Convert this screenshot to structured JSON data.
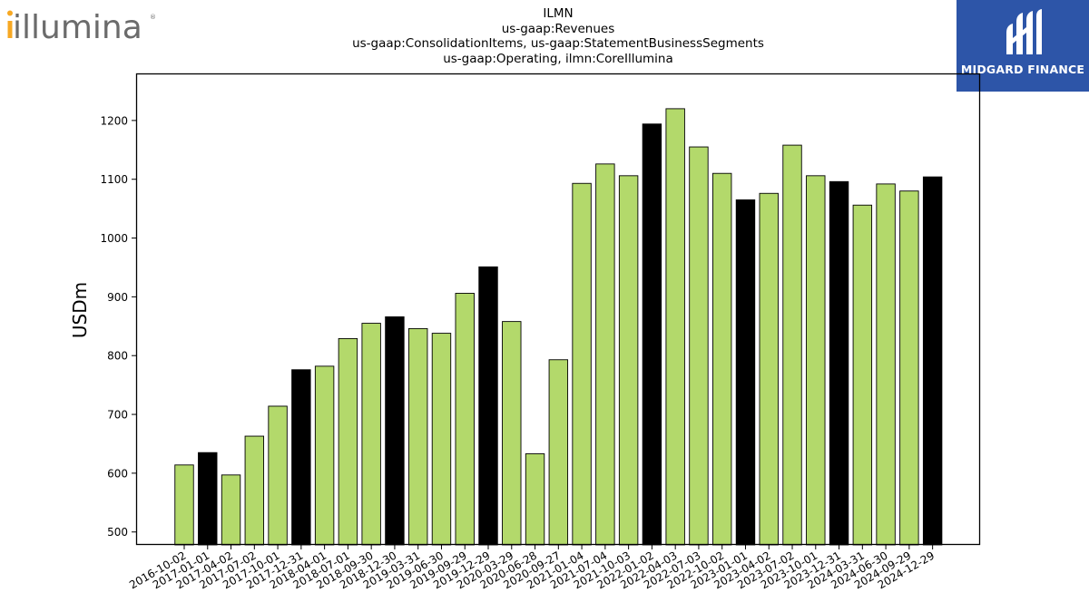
{
  "branding": {
    "left_logo": "illumina",
    "right_logo": "MIDGARD FINANCE",
    "right_logo_color": "#2d55a8"
  },
  "chart_data": {
    "type": "bar",
    "title_lines": [
      "ILMN",
      "us-gaap:Revenues",
      "us-gaap:ConsolidationItems, us-gaap:StatementBusinessSegments",
      "us-gaap:Operating, ilmn:CoreIllumina"
    ],
    "xlabel": "",
    "ylabel": "USDm",
    "ylim": [
      478,
      1280
    ],
    "yticks": [
      500,
      600,
      700,
      800,
      900,
      1000,
      1100,
      1200
    ],
    "grid": false,
    "colors": {
      "quarter": "#b3d96b",
      "fiscal_year_end": "#000000",
      "edge": "#000000"
    },
    "categories": [
      "2016-10-02",
      "2017-01-01",
      "2017-04-02",
      "2017-07-02",
      "2017-10-01",
      "2017-12-31",
      "2018-04-01",
      "2018-07-01",
      "2018-09-30",
      "2018-12-30",
      "2019-03-31",
      "2019-06-30",
      "2019-09-29",
      "2019-12-29",
      "2020-03-29",
      "2020-06-28",
      "2020-09-27",
      "2021-01-04",
      "2021-07-04",
      "2021-10-03",
      "2022-01-02",
      "2022-04-03",
      "2022-07-03",
      "2022-10-02",
      "2023-01-01",
      "2023-04-02",
      "2023-07-02",
      "2023-10-01",
      "2023-12-31",
      "2024-03-31",
      "2024-06-30",
      "2024-09-29",
      "2024-12-29"
    ],
    "values": [
      614,
      635,
      597,
      663,
      714,
      776,
      782,
      829,
      855,
      866,
      846,
      838,
      906,
      951,
      858,
      633,
      793,
      1093,
      1126,
      1106,
      1194,
      1220,
      1155,
      1110,
      1065,
      1076,
      1158,
      1106,
      1096,
      1056,
      1092,
      1080,
      1104
    ],
    "highlight": [
      false,
      true,
      false,
      false,
      false,
      true,
      false,
      false,
      false,
      true,
      false,
      false,
      false,
      true,
      false,
      false,
      false,
      false,
      false,
      false,
      true,
      false,
      false,
      false,
      true,
      false,
      false,
      false,
      true,
      false,
      false,
      false,
      true
    ]
  }
}
